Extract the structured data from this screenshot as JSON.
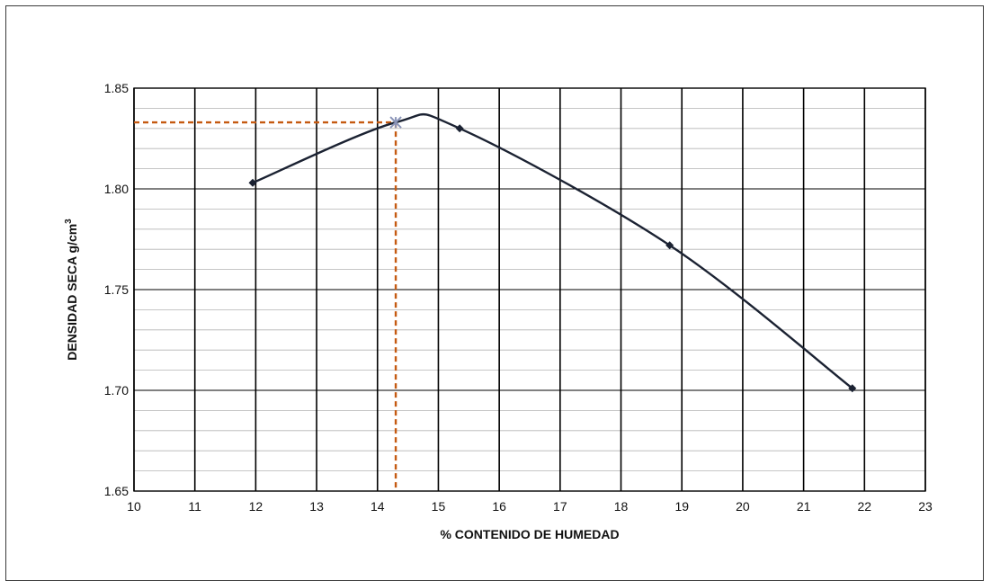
{
  "chart_data": {
    "type": "scatter",
    "title": "",
    "xlabel": "% CONTENIDO DE HUMEDAD",
    "ylabel": "DENSIDAD SECA g/cm",
    "ylabel_superscript": "3",
    "xlim": [
      10,
      23
    ],
    "ylim": [
      1.65,
      1.85
    ],
    "x_ticks": [
      "10",
      "11",
      "12",
      "13",
      "14",
      "15",
      "16",
      "17",
      "18",
      "19",
      "20",
      "21",
      "22",
      "23"
    ],
    "y_ticks": [
      "1.65",
      "1.70",
      "1.75",
      "1.80",
      "1.85"
    ],
    "grid": {
      "major_x": true,
      "major_y": true,
      "minor_y_step": 0.01
    },
    "series": [
      {
        "points": [
          {
            "x": 11.95,
            "y": 1.803
          },
          {
            "x": 15.35,
            "y": 1.83
          },
          {
            "x": 18.8,
            "y": 1.772
          },
          {
            "x": 21.8,
            "y": 1.701
          }
        ],
        "marker": "diamond",
        "color": "#1b2232",
        "curve": "smooth-fit"
      }
    ],
    "optimum": {
      "x": 14.3,
      "y": 1.833,
      "marker": "star",
      "color": "#8a94b8",
      "guide_color": "#c55a11"
    }
  }
}
